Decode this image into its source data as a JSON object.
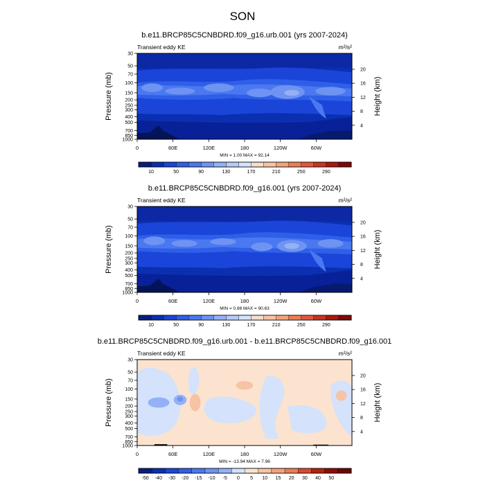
{
  "figure": {
    "title": "SON"
  },
  "chart_data": [
    {
      "type": "heatmap",
      "title": "b.e11.BRCP85C5CNBDRD.f09_g16.urb.001 (yrs 2007-2024)",
      "subtitle": "Transient eddy KE",
      "units": "m²/s²",
      "ylabel": "Pressure (mb)",
      "ylabel_right": "Height (km)",
      "x_ticks": [
        "0",
        "60E",
        "120E",
        "180",
        "120W",
        "60W"
      ],
      "y_ticks": [
        "30",
        "50",
        "70",
        "100",
        "150",
        "200",
        "250",
        "300",
        "400",
        "500",
        "700",
        "850",
        "1000"
      ],
      "y_right_ticks": [
        "20",
        "16",
        "12",
        "8",
        "4"
      ],
      "stats": "MIN =   1.00  MAX =  92.14",
      "min": 1.0,
      "max": 92.14,
      "colorbar_labels": [
        "10",
        "50",
        "90",
        "130",
        "170",
        "210",
        "250",
        "290"
      ],
      "colorbar_colors": [
        "#061e7e",
        "#0a2fb0",
        "#1a45d8",
        "#2f5fe8",
        "#4a78f0",
        "#6e93f2",
        "#93b1f6",
        "#b6cbf8",
        "#d4e2fb",
        "#f4ddc9",
        "#f6c3a4",
        "#f3a37a",
        "#ec7d52",
        "#e0583a",
        "#c83423",
        "#a8190f",
        "#7e0a06"
      ],
      "zlim": [
        10,
        290
      ]
    },
    {
      "type": "heatmap",
      "title": "b.e11.BRCP85C5CNBDRD.f09_g16.001 (yrs 2007-2024)",
      "subtitle": "Transient eddy KE",
      "units": "m²/s²",
      "ylabel": "Pressure (mb)",
      "ylabel_right": "Height (km)",
      "x_ticks": [
        "0",
        "60E",
        "120E",
        "180",
        "120W",
        "60W"
      ],
      "y_ticks": [
        "30",
        "50",
        "70",
        "100",
        "150",
        "200",
        "250",
        "300",
        "400",
        "500",
        "700",
        "850",
        "1000"
      ],
      "y_right_ticks": [
        "20",
        "16",
        "12",
        "8",
        "4"
      ],
      "stats": "MIN =   0.88  MAX =  90.63",
      "min": 0.88,
      "max": 90.63,
      "colorbar_labels": [
        "10",
        "50",
        "90",
        "130",
        "170",
        "210",
        "250",
        "290"
      ],
      "colorbar_colors": [
        "#061e7e",
        "#0a2fb0",
        "#1a45d8",
        "#2f5fe8",
        "#4a78f0",
        "#6e93f2",
        "#93b1f6",
        "#b6cbf8",
        "#d4e2fb",
        "#f4ddc9",
        "#f6c3a4",
        "#f3a37a",
        "#ec7d52",
        "#e0583a",
        "#c83423",
        "#a8190f",
        "#7e0a06"
      ],
      "zlim": [
        10,
        290
      ]
    },
    {
      "type": "heatmap",
      "title": "b.e11.BRCP85C5CNBDRD.f09_g16.urb.001 - b.e11.BRCP85C5CNBDRD.f09_g16.001",
      "subtitle": "Transient eddy KE",
      "units": "m²/s²",
      "ylabel": "Pressure (mb)",
      "ylabel_right": "Height (km)",
      "x_ticks": [
        "0",
        "60E",
        "120E",
        "180",
        "120W",
        "60W"
      ],
      "y_ticks": [
        "30",
        "50",
        "70",
        "100",
        "150",
        "200",
        "250",
        "300",
        "400",
        "500",
        "700",
        "850",
        "1000"
      ],
      "y_right_ticks": [
        "20",
        "16",
        "12",
        "8",
        "4"
      ],
      "stats": "MIN = -13.94  MAX =   7.96",
      "min": -13.94,
      "max": 7.96,
      "colorbar_labels": [
        "-50",
        "-40",
        "-30",
        "-20",
        "-15",
        "-10",
        "-5",
        "0",
        "5",
        "10",
        "15",
        "20",
        "30",
        "40",
        "50"
      ],
      "colorbar_colors": [
        "#061e7e",
        "#0a2fb0",
        "#1a45d8",
        "#2f5fe8",
        "#4a78f0",
        "#6e93f2",
        "#93b1f6",
        "#d4e2fb",
        "#fbe3cf",
        "#f6c3a4",
        "#f3a37a",
        "#ec7d52",
        "#d9492e",
        "#b5200f",
        "#8e0c06",
        "#6b0503"
      ],
      "zlim": [
        -50,
        50
      ]
    }
  ]
}
